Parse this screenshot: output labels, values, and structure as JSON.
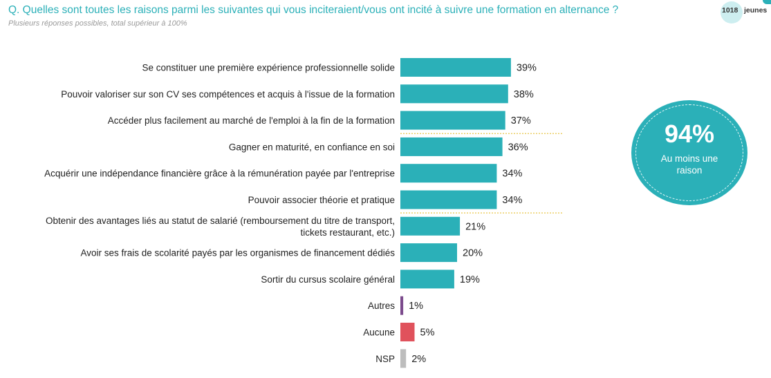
{
  "header": {
    "question": "Q. Quelles sont toutes les raisons parmi les suivantes qui vous inciteraient/vous ont incité à suivre une formation en alternance ?",
    "note": "Plusieurs réponses possibles, total supérieur à 100%"
  },
  "base": {
    "count": "1018",
    "unit": "jeunes"
  },
  "kpi": {
    "value": "94%",
    "caption": "Au moins une raison"
  },
  "chart_data": {
    "type": "bar",
    "orientation": "horizontal",
    "categories": [
      "Se constituer une première expérience professionnelle solide",
      "Pouvoir valoriser sur son CV ses compétences et acquis à l'issue de la formation",
      "Accéder plus facilement au marché de l'emploi à la fin de la formation",
      "Gagner en maturité, en confiance en soi",
      "Acquérir une indépendance financière grâce à la rémunération payée par l'entreprise",
      "Pouvoir associer théorie et pratique",
      "Obtenir des avantages liés au statut de salarié (remboursement du titre de transport, tickets restaurant, etc.)",
      "Avoir ses frais de scolarité payés par les organismes de financement dédiés",
      "Sortir du cursus scolaire général",
      "Autres",
      "Aucune",
      "NSP"
    ],
    "label_lines": [
      [
        "Se constituer une première expérience professionnelle solide"
      ],
      [
        "Pouvoir valoriser sur son CV ses compétences et acquis à l'issue de la formation"
      ],
      [
        "Accéder plus facilement au marché de l'emploi à la fin de la formation"
      ],
      [
        "Gagner en maturité, en confiance en soi"
      ],
      [
        "Acquérir une indépendance financière grâce à la rémunération payée par l'entreprise"
      ],
      [
        "Pouvoir associer théorie et pratique"
      ],
      [
        "Obtenir des avantages liés au statut de salarié (remboursement du titre de transport,",
        "tickets restaurant, etc.)"
      ],
      [
        "Avoir ses frais de scolarité payés par les organismes de financement dédiés"
      ],
      [
        "Sortir du cursus scolaire général"
      ],
      [
        "Autres"
      ],
      [
        "Aucune"
      ],
      [
        "NSP"
      ]
    ],
    "values": [
      39,
      38,
      37,
      36,
      34,
      34,
      21,
      20,
      19,
      1,
      5,
      2
    ],
    "value_labels": [
      "39%",
      "38%",
      "37%",
      "36%",
      "34%",
      "34%",
      "21%",
      "20%",
      "19%",
      "1%",
      "5%",
      "2%"
    ],
    "bar_colors": [
      "#2bb0b8",
      "#2bb0b8",
      "#2bb0b8",
      "#2bb0b8",
      "#2bb0b8",
      "#2bb0b8",
      "#2bb0b8",
      "#2bb0b8",
      "#2bb0b8",
      "#7b4a8c",
      "#e0525c",
      "#bdbdbd"
    ],
    "dividers_after": [
      2,
      5
    ],
    "divider_color": "#e8c547",
    "unit": "%",
    "grid": false,
    "legend": "none"
  }
}
